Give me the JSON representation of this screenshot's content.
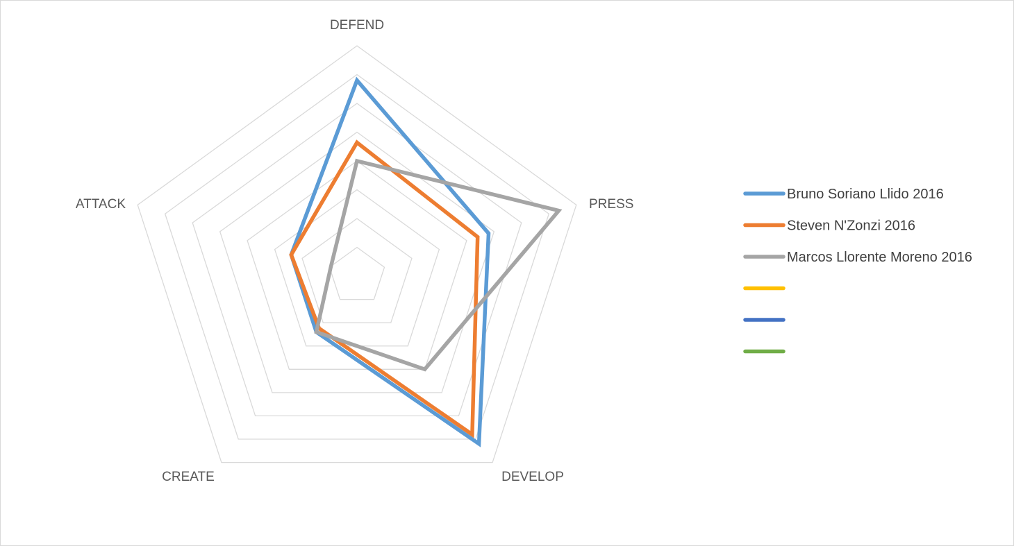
{
  "chart_data": {
    "type": "radar",
    "title": "",
    "axes": [
      "DEFEND",
      "PRESS",
      "DEVELOP",
      "CREATE",
      "ATTACK"
    ],
    "range": [
      0,
      100
    ],
    "grid_rings": 8,
    "grid": true,
    "legend_position": "right",
    "series": [
      {
        "name": "Bruno Soriano Llido 2016",
        "color": "#5b9bd5",
        "values": [
          85,
          60,
          90,
          30,
          30
        ]
      },
      {
        "name": "Steven N'Zonzi 2016",
        "color": "#ed7d31",
        "values": [
          58,
          55,
          85,
          28,
          30
        ]
      },
      {
        "name": "Marcos Llorente Moreno 2016",
        "color": "#a5a5a5",
        "values": [
          50,
          92,
          50,
          30,
          12
        ]
      },
      {
        "name": "",
        "color": "#ffc000",
        "values": []
      },
      {
        "name": "",
        "color": "#4472c4",
        "values": []
      },
      {
        "name": "",
        "color": "#70ad47",
        "values": []
      }
    ]
  }
}
